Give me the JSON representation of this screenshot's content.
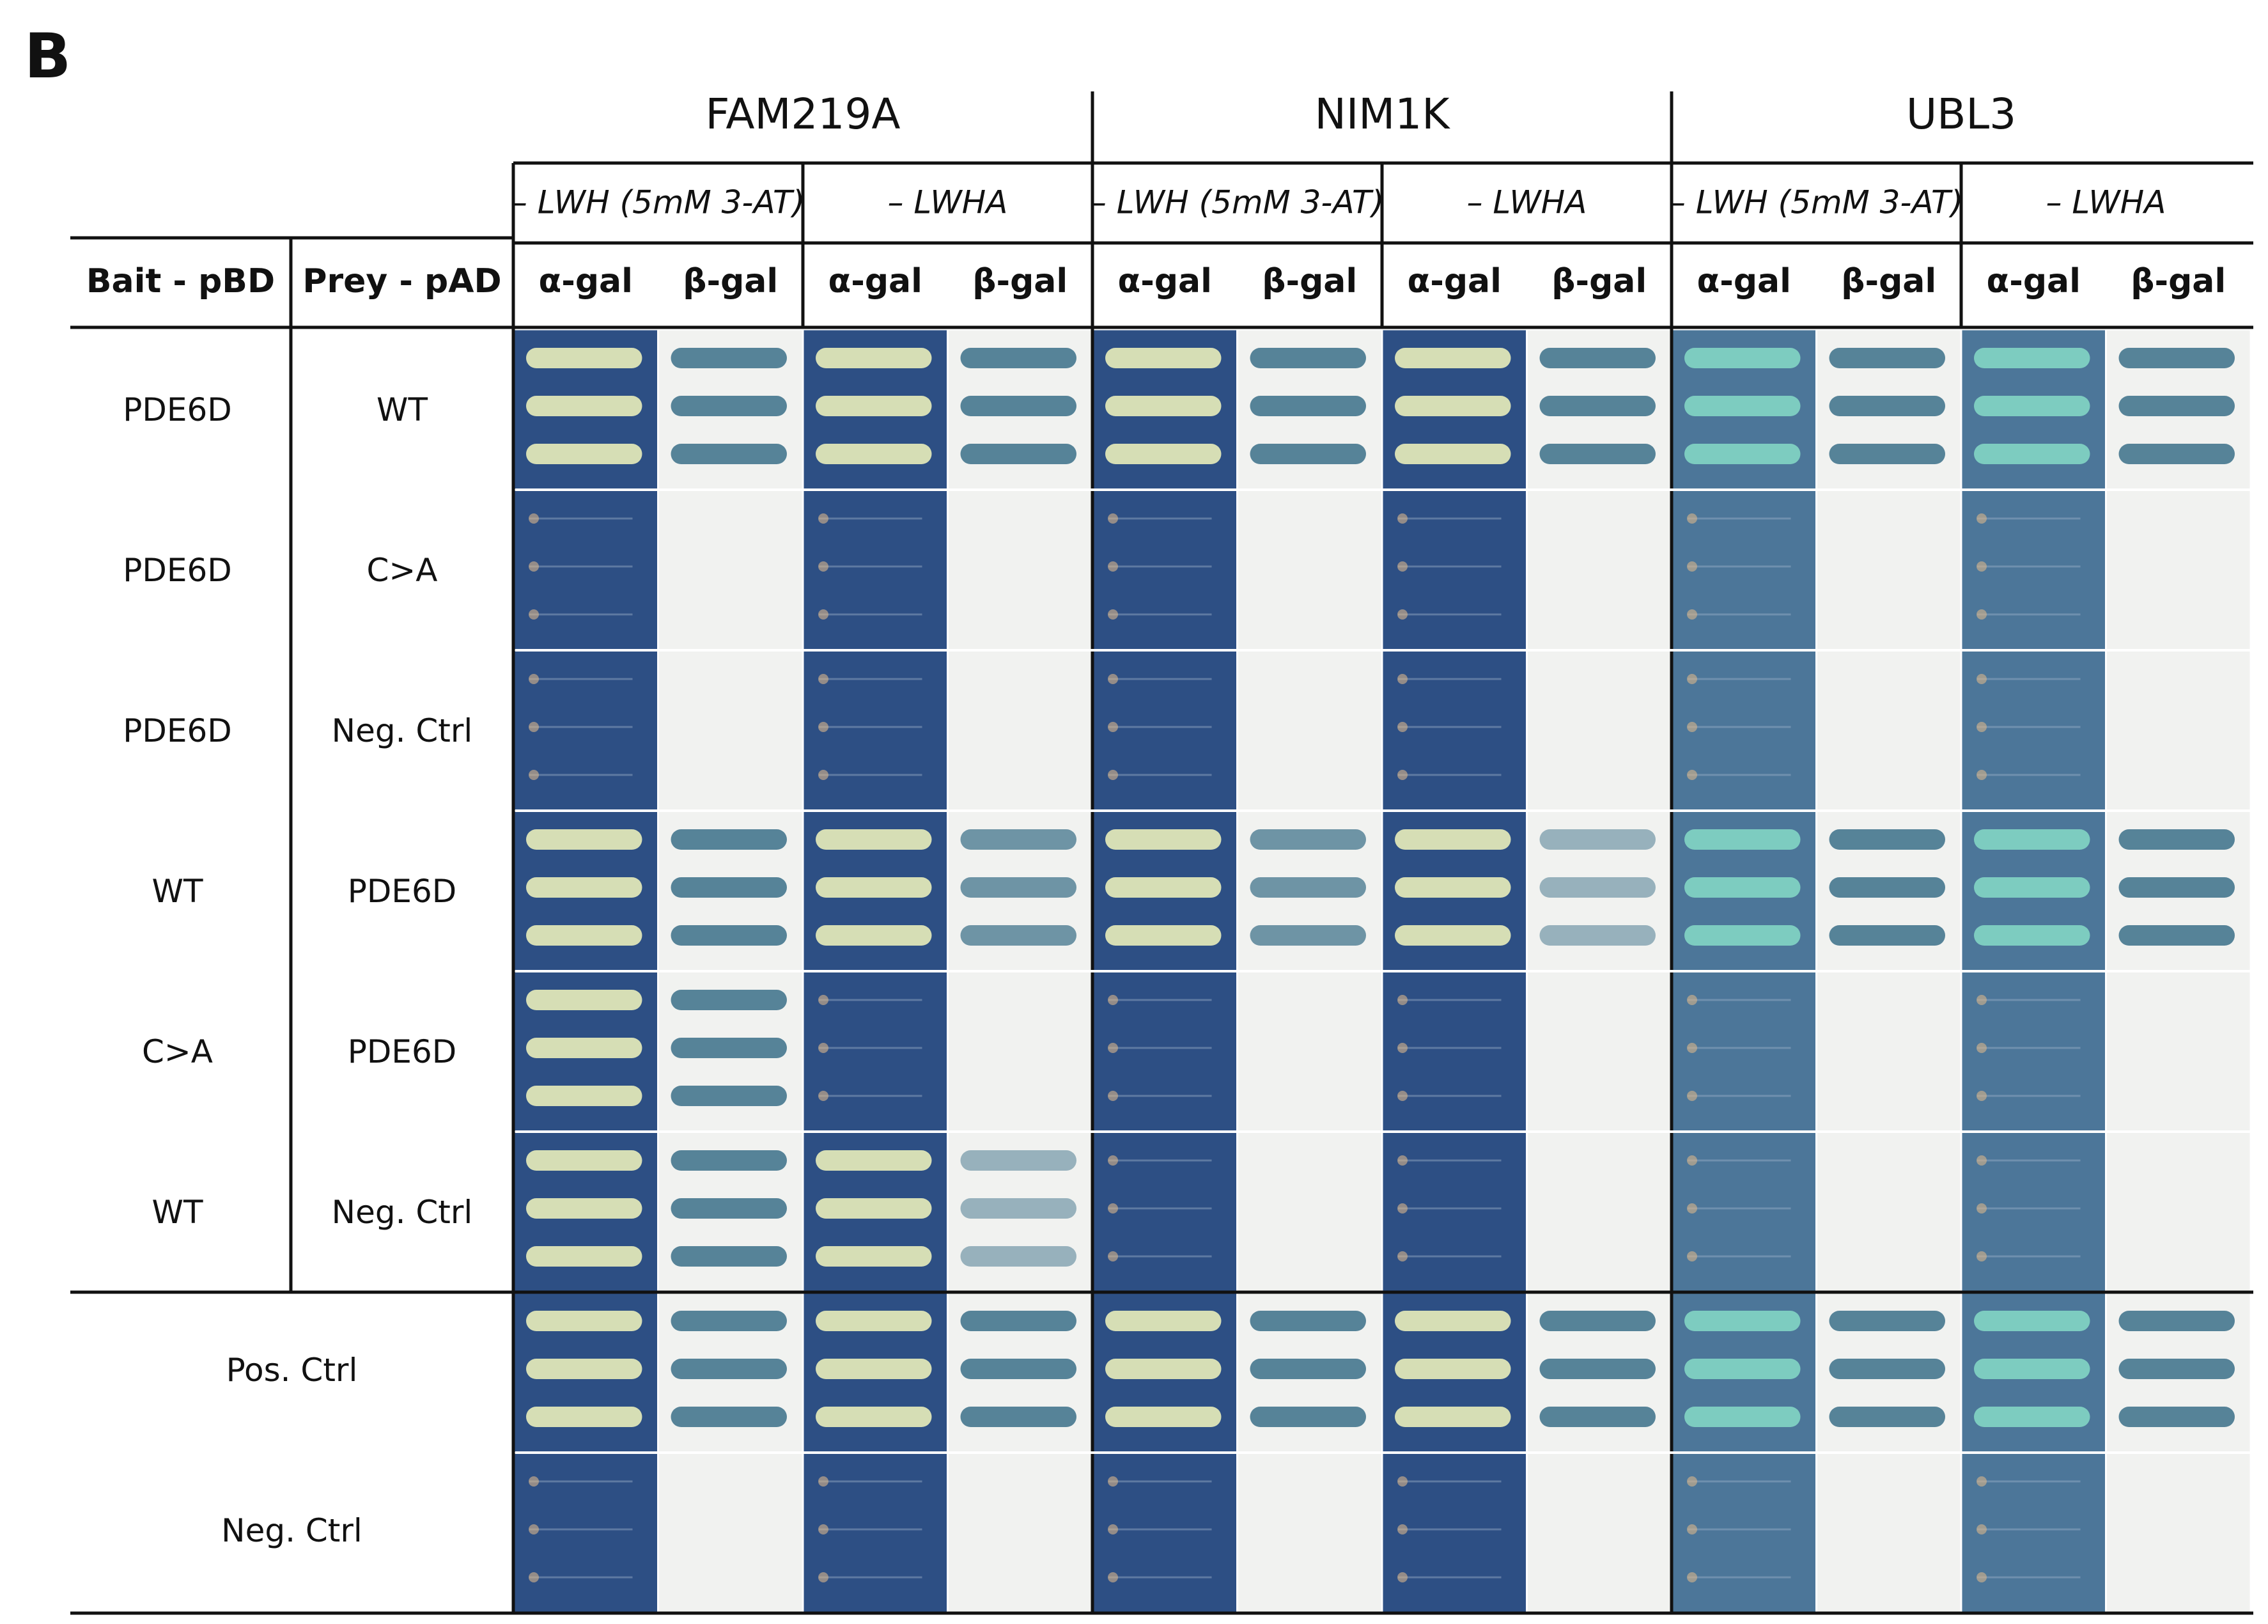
{
  "panel_label": "B",
  "genes": [
    "FAM219A",
    "NIM1K",
    "UBL3"
  ],
  "conditions": [
    "– LWH (5mM 3-AT)",
    "– LWHA"
  ],
  "assays": [
    "α-gal",
    "β-gal"
  ],
  "header": {
    "bait": "Bait - pBD",
    "prey": "Prey - pAD"
  },
  "rows": [
    {
      "bait": "PDE6D",
      "prey": "WT"
    },
    {
      "bait": "PDE6D",
      "prey": "C>A"
    },
    {
      "bait": "PDE6D",
      "prey": "Neg. Ctrl"
    },
    {
      "bait": "WT",
      "prey": "PDE6D"
    },
    {
      "bait": "C>A",
      "prey": "PDE6D"
    },
    {
      "bait": "WT",
      "prey": "Neg. Ctrl"
    }
  ],
  "control_rows": [
    {
      "label": "Pos. Ctrl"
    },
    {
      "label": "Neg. Ctrl"
    }
  ],
  "growth": [
    [
      3,
      3,
      3,
      3,
      3,
      3,
      3,
      3,
      3,
      3,
      3,
      3
    ],
    [
      0,
      0,
      0,
      0,
      0,
      0,
      0,
      0,
      0,
      0,
      0,
      0
    ],
    [
      0,
      0,
      0,
      0,
      0,
      0,
      0,
      0,
      0,
      0,
      0,
      0
    ],
    [
      3,
      3,
      3,
      2,
      3,
      2,
      3,
      1,
      3,
      3,
      3,
      3
    ],
    [
      3,
      3,
      0,
      0,
      0,
      0,
      0,
      0,
      0,
      0,
      0,
      0
    ],
    [
      3,
      3,
      3,
      1,
      0,
      0,
      0,
      0,
      0,
      0,
      0,
      0
    ],
    [
      3,
      3,
      3,
      3,
      3,
      3,
      3,
      3,
      3,
      3,
      3,
      3
    ],
    [
      0,
      0,
      0,
      0,
      0,
      0,
      0,
      0,
      0,
      0,
      0,
      0
    ]
  ],
  "colors": {
    "plate_dark": "#2d4f84",
    "plate_light": "#4c7699",
    "colony_cream": "#dfe6b7",
    "colony_teal": "#7fd1c2",
    "membrane": "#f1f2f0",
    "stain_blue": "#4d7c92",
    "line": "#111111"
  }
}
